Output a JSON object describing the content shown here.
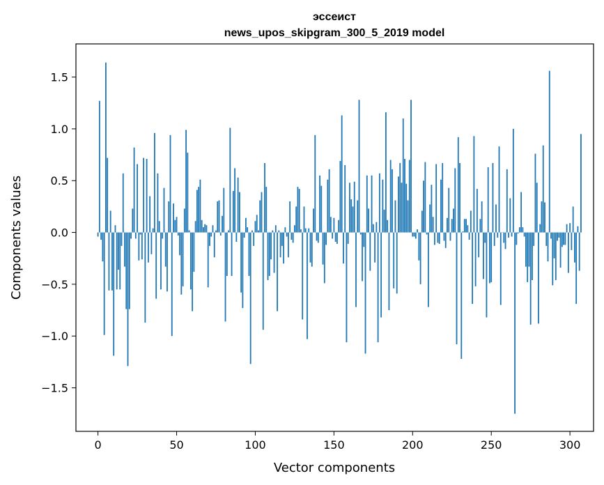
{
  "chart_data": {
    "type": "bar",
    "title_word": "эссеист",
    "title_model": "news_upos_skipgram_300_5_2019 model",
    "xlabel": "Vector components",
    "ylabel": "Components values",
    "xlim": [
      -14,
      315
    ],
    "ylim": [
      -1.92,
      1.82
    ],
    "x_ticks": [
      0,
      50,
      100,
      150,
      200,
      250,
      300
    ],
    "x_tick_labels": [
      "0",
      "50",
      "100",
      "150",
      "200",
      "250",
      "300"
    ],
    "y_ticks": [
      -1.5,
      -1.0,
      -0.5,
      0.0,
      0.5,
      1.0,
      1.5
    ],
    "y_tick_labels": [
      "−1.5",
      "−1.0",
      "−0.5",
      "0.0",
      "0.5",
      "1.0",
      "1.5"
    ],
    "bar_color": "#1f77b4",
    "values": [
      -0.04,
      1.27,
      -0.07,
      -0.28,
      -0.99,
      1.64,
      0.72,
      -0.56,
      0.21,
      -0.56,
      -1.19,
      0.07,
      -0.55,
      -0.36,
      -0.55,
      -0.13,
      0.57,
      -0.33,
      -0.74,
      -1.29,
      -0.74,
      -0.06,
      0.23,
      0.82,
      -0.06,
      0.66,
      -0.27,
      -0.02,
      -0.26,
      0.72,
      -0.87,
      0.71,
      -0.29,
      0.35,
      -0.21,
      0.04,
      0.96,
      -0.64,
      0.57,
      0.11,
      -0.55,
      -0.06,
      0.43,
      -0.33,
      -0.57,
      0.3,
      0.94,
      -1.0,
      0.28,
      0.12,
      0.15,
      -0.03,
      -0.22,
      -0.6,
      -0.52,
      0.23,
      0.99,
      0.77,
      0.02,
      -0.55,
      -0.76,
      -0.38,
      0.11,
      0.41,
      0.44,
      0.51,
      0.12,
      0.05,
      0.08,
      0.07,
      -0.53,
      -0.13,
      -0.04,
      0.07,
      -0.24,
      0.02,
      0.3,
      0.31,
      -0.03,
      0.16,
      0.43,
      -0.86,
      -0.42,
      0.02,
      1.01,
      -0.42,
      0.4,
      0.62,
      -0.09,
      0.53,
      0.39,
      -0.58,
      -0.73,
      -0.05,
      0.14,
      0.05,
      -0.42,
      -1.27,
      0.02,
      -0.13,
      0.11,
      0.17,
      0.02,
      0.31,
      0.39,
      -0.94,
      0.67,
      0.44,
      -0.46,
      -0.42,
      -0.26,
      0.02,
      -0.39,
      0.07,
      -0.76,
      0.02,
      -0.24,
      -0.13,
      -0.3,
      0.05,
      -0.04,
      -0.24,
      0.3,
      -0.07,
      -0.1,
      0.07,
      0.25,
      0.44,
      0.42,
      0.03,
      -0.84,
      0.25,
      0.04,
      -1.03,
      0.04,
      -0.29,
      -0.33,
      0.23,
      0.94,
      -0.08,
      -0.1,
      0.55,
      0.45,
      -0.31,
      -0.49,
      -0.12,
      0.51,
      0.61,
      0.15,
      -0.06,
      0.14,
      -0.09,
      -0.11,
      0.12,
      0.69,
      1.13,
      -0.3,
      0.65,
      -1.06,
      -0.11,
      0.48,
      0.32,
      0.25,
      0.49,
      -0.72,
      0.31,
      1.28,
      -0.02,
      -0.47,
      -0.14,
      -1.17,
      0.55,
      0.23,
      -0.37,
      0.55,
      0.08,
      -0.29,
      0.1,
      -1.06,
      0.57,
      -0.82,
      0.51,
      0.22,
      1.16,
      0.12,
      -0.75,
      0.7,
      0.61,
      -0.54,
      0.31,
      -0.59,
      0.54,
      0.67,
      0.48,
      1.1,
      0.71,
      0.47,
      0.31,
      0.7,
      1.28,
      -0.04,
      -0.04,
      -0.06,
      0.03,
      -0.27,
      -0.5,
      0.21,
      0.5,
      0.68,
      -0.02,
      -0.72,
      0.27,
      0.46,
      0.15,
      -0.12,
      0.66,
      -0.1,
      -0.11,
      0.51,
      0.67,
      -0.08,
      -0.15,
      0.14,
      0.43,
      -0.08,
      0.13,
      0.23,
      0.62,
      -1.08,
      0.92,
      0.67,
      -1.22,
      0.01,
      0.13,
      0.13,
      0.07,
      -0.07,
      0.21,
      -0.69,
      0.93,
      -0.52,
      0.42,
      -0.24,
      0.13,
      0.3,
      -0.45,
      -0.1,
      -0.82,
      0.63,
      -0.49,
      -0.48,
      0.67,
      -0.13,
      0.27,
      -0.05,
      0.83,
      -0.7,
      0.0,
      -0.1,
      -0.16,
      0.61,
      -0.05,
      0.33,
      -0.04,
      1.0,
      -1.75,
      -0.12,
      -0.01,
      0.05,
      0.39,
      0.05,
      -0.04,
      -0.33,
      -0.48,
      -0.33,
      -0.89,
      -0.46,
      -0.13,
      0.76,
      0.48,
      -0.88,
      0.08,
      0.3,
      0.84,
      0.29,
      -0.13,
      -0.28,
      1.56,
      -0.06,
      -0.51,
      -0.25,
      -0.46,
      -0.08,
      -0.05,
      -0.34,
      -0.14,
      -0.12,
      -0.12,
      0.08,
      -0.39,
      0.09,
      -0.17,
      0.25,
      -0.29,
      -0.69,
      0.06,
      -0.37,
      0.95
    ]
  }
}
